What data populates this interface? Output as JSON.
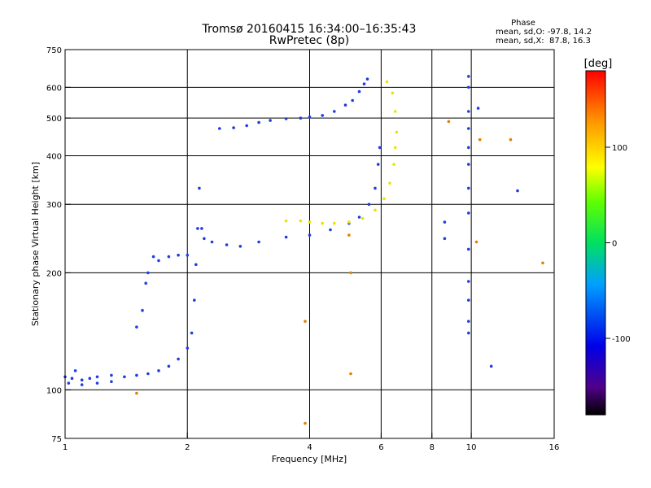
{
  "chart_data": {
    "type": "scatter",
    "title": "Tromsø 20160415 16:34:00–16:35:43",
    "subtitle": "RwPretec (8p)",
    "xlabel": "Frequency [MHz]",
    "ylabel": "Stationary phase Virtual Height [km]",
    "x_scale": "log",
    "y_scale": "log",
    "xlim": [
      1,
      16
    ],
    "ylim": [
      75,
      750
    ],
    "x_ticks": [
      1,
      2,
      4,
      6,
      8,
      10,
      16
    ],
    "x_tick_labels": [
      "1",
      "2",
      "4",
      "6",
      "8",
      "10",
      "16"
    ],
    "y_ticks": [
      75,
      100,
      200,
      300,
      400,
      500,
      600,
      750
    ],
    "y_tick_labels": [
      "75",
      "100",
      "200",
      "300",
      "400",
      "500",
      "600",
      "750"
    ],
    "x_gridlines": [
      2,
      4,
      6,
      8,
      10
    ],
    "y_gridlines": [
      100,
      200,
      300,
      400,
      500,
      600
    ],
    "phase_stats": {
      "title": "Phase",
      "line_o": "mean, sd,O: -97.8, 14.2",
      "line_x": "mean, sd,X:  87.8, 16.3"
    },
    "colorbar": {
      "label": "[deg]",
      "range": [
        -180,
        180
      ],
      "ticks": [
        100,
        0,
        -100
      ],
      "tick_labels": [
        "100",
        "0",
        "-100"
      ]
    },
    "series": [
      {
        "name": "O-mode E/F1 trace (blue)",
        "phase_deg": -100,
        "color": "#1f3ce0",
        "points": [
          [
            1.0,
            108
          ],
          [
            1.04,
            107
          ],
          [
            1.1,
            106
          ],
          [
            1.15,
            107
          ],
          [
            1.2,
            108
          ],
          [
            1.3,
            109
          ],
          [
            1.4,
            108
          ],
          [
            1.5,
            109
          ],
          [
            1.6,
            110
          ],
          [
            1.7,
            112
          ],
          [
            1.8,
            115
          ],
          [
            1.9,
            120
          ],
          [
            2.0,
            128
          ],
          [
            2.05,
            140
          ],
          [
            2.08,
            170
          ],
          [
            2.1,
            210
          ],
          [
            2.12,
            260
          ],
          [
            2.14,
            330
          ],
          [
            2.17,
            260
          ],
          [
            2.2,
            245
          ],
          [
            2.3,
            240
          ],
          [
            2.5,
            236
          ],
          [
            2.7,
            234
          ],
          [
            3.0,
            240
          ],
          [
            3.5,
            247
          ],
          [
            4.0,
            250
          ],
          [
            4.5,
            258
          ],
          [
            5.0,
            268
          ],
          [
            5.3,
            278
          ],
          [
            5.6,
            300
          ],
          [
            5.8,
            330
          ],
          [
            5.9,
            380
          ],
          [
            5.95,
            420
          ]
        ]
      },
      {
        "name": "O-mode F2 trace (blue)",
        "phase_deg": -100,
        "color": "#1f3ce0",
        "points": [
          [
            2.4,
            470
          ],
          [
            2.6,
            472
          ],
          [
            2.8,
            478
          ],
          [
            3.0,
            487
          ],
          [
            3.2,
            493
          ],
          [
            3.5,
            498
          ],
          [
            3.8,
            500
          ],
          [
            4.0,
            503
          ],
          [
            4.3,
            508
          ],
          [
            4.6,
            520
          ],
          [
            4.9,
            540
          ],
          [
            5.1,
            555
          ],
          [
            5.3,
            585
          ],
          [
            5.45,
            612
          ],
          [
            5.55,
            630
          ]
        ]
      },
      {
        "name": "Low-frequency blue scatter",
        "phase_deg": -100,
        "color": "#2040e8",
        "points": [
          [
            1.02,
            104
          ],
          [
            1.06,
            112
          ],
          [
            1.1,
            103
          ],
          [
            1.2,
            104
          ],
          [
            1.3,
            105
          ],
          [
            1.5,
            145
          ],
          [
            1.55,
            160
          ],
          [
            1.58,
            188
          ],
          [
            1.6,
            200
          ],
          [
            1.65,
            220
          ],
          [
            1.7,
            215
          ],
          [
            1.8,
            220
          ],
          [
            1.9,
            222
          ],
          [
            2.0,
            222
          ]
        ]
      },
      {
        "name": "X-mode trace (yellow)",
        "phase_deg": 90,
        "color": "#e6e600",
        "points": [
          [
            3.5,
            272
          ],
          [
            3.8,
            272
          ],
          [
            4.0,
            270
          ],
          [
            4.3,
            268
          ],
          [
            4.6,
            268
          ],
          [
            5.0,
            270
          ],
          [
            5.4,
            276
          ],
          [
            5.8,
            290
          ],
          [
            6.1,
            310
          ],
          [
            6.3,
            340
          ],
          [
            6.45,
            380
          ],
          [
            6.5,
            420
          ],
          [
            6.55,
            460
          ],
          [
            6.5,
            520
          ],
          [
            6.4,
            580
          ],
          [
            6.2,
            620
          ]
        ]
      },
      {
        "name": "Upper-frequency vertical dots (blue)",
        "phase_deg": -100,
        "color": "#1f3ce0",
        "points": [
          [
            9.85,
            640
          ],
          [
            9.85,
            600
          ],
          [
            9.85,
            520
          ],
          [
            9.85,
            470
          ],
          [
            9.85,
            420
          ],
          [
            9.85,
            380
          ],
          [
            9.85,
            330
          ],
          [
            9.85,
            285
          ],
          [
            9.85,
            230
          ],
          [
            9.85,
            190
          ],
          [
            9.85,
            170
          ],
          [
            9.85,
            150
          ],
          [
            9.85,
            140
          ],
          [
            10.4,
            530
          ],
          [
            8.6,
            270
          ],
          [
            8.6,
            245
          ],
          [
            13.0,
            325
          ],
          [
            11.2,
            115
          ]
        ]
      },
      {
        "name": "Scattered dots (mixed)",
        "phase_deg": 120,
        "color": "#e08000",
        "points": [
          [
            3.9,
            150
          ],
          [
            3.9,
            82
          ],
          [
            5.05,
            110
          ],
          [
            5.05,
            200
          ],
          [
            5.0,
            250
          ],
          [
            1.5,
            98
          ],
          [
            15.0,
            212
          ],
          [
            12.5,
            440
          ],
          [
            10.5,
            440
          ],
          [
            10.3,
            240
          ],
          [
            8.8,
            490
          ]
        ]
      }
    ]
  }
}
